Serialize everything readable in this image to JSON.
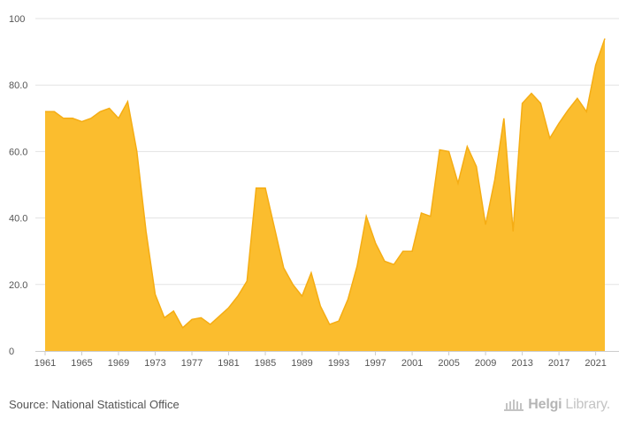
{
  "chart_data": {
    "type": "area",
    "color": "#fbbd2e",
    "stroke_color": "#f5ad14",
    "ylim": [
      0,
      100
    ],
    "y_ticks": [
      "0",
      "20.0",
      "40.0",
      "60.0",
      "80.0",
      "100"
    ],
    "y_tick_values": [
      0,
      20,
      40,
      60,
      80,
      100
    ],
    "x_ticks": [
      1961,
      1965,
      1969,
      1973,
      1977,
      1981,
      1985,
      1989,
      1993,
      1997,
      2001,
      2005,
      2009,
      2013,
      2017,
      2021
    ],
    "grid": true,
    "x": [
      1961,
      1962,
      1963,
      1964,
      1965,
      1966,
      1967,
      1968,
      1969,
      1970,
      1971,
      1972,
      1973,
      1974,
      1975,
      1976,
      1977,
      1978,
      1979,
      1980,
      1981,
      1982,
      1983,
      1984,
      1985,
      1986,
      1987,
      1988,
      1989,
      1990,
      1991,
      1992,
      1993,
      1994,
      1995,
      1996,
      1997,
      1998,
      1999,
      2000,
      2001,
      2002,
      2003,
      2004,
      2005,
      2006,
      2007,
      2008,
      2009,
      2010,
      2011,
      2012,
      2013,
      2014,
      2015,
      2016,
      2017,
      2018,
      2019,
      2020,
      2021,
      2022
    ],
    "values": [
      72.0,
      72.0,
      70.0,
      70.0,
      69.0,
      70.0,
      72.0,
      73.0,
      70.0,
      75.0,
      60.0,
      36.0,
      17.0,
      10.0,
      12.0,
      7.0,
      9.5,
      10.0,
      8.0,
      10.5,
      13.0,
      16.5,
      21.0,
      49.0,
      49.0,
      37.0,
      25.0,
      20.0,
      16.5,
      23.5,
      13.5,
      8.0,
      9.0,
      15.5,
      25.5,
      40.5,
      32.5,
      27.0,
      26.0,
      30.0,
      30.0,
      41.5,
      40.5,
      60.5,
      60.0,
      50.5,
      61.5,
      55.5,
      38.0,
      51.5,
      70.0,
      36.0,
      74.5,
      77.5,
      74.5,
      64.0,
      68.5,
      72.5,
      76.0,
      72.0,
      86.0,
      94.0
    ]
  },
  "footer": {
    "source": "Source: National Statistical Office",
    "logo_bold": "Helgi",
    "logo_light": "Library."
  }
}
